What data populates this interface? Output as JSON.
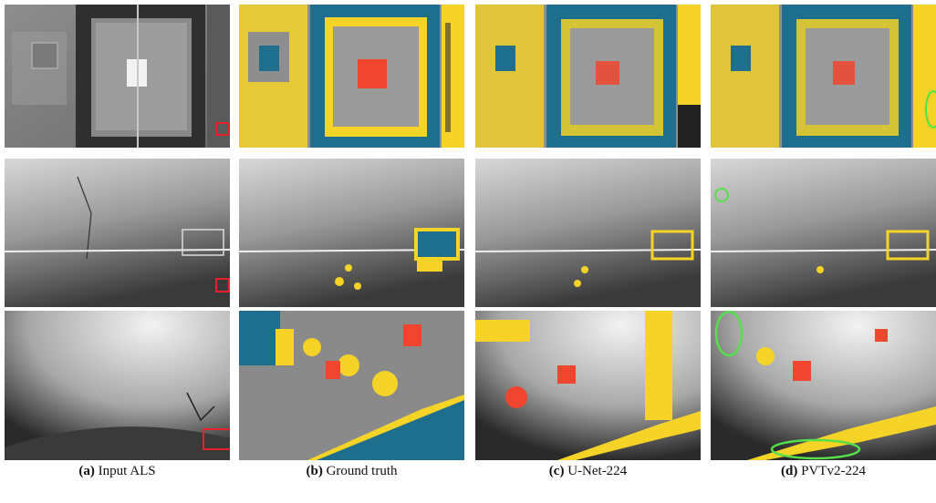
{
  "captions": [
    {
      "letter": "(a)",
      "label": "Input ALS"
    },
    {
      "letter": "(b)",
      "label": "Ground truth"
    },
    {
      "letter": "(c)",
      "label": "U-Net-224"
    },
    {
      "letter": "(d)",
      "label": "PVTv2-224"
    }
  ],
  "colors": {
    "building": "#f0452f",
    "platform": "#f5d327",
    "water": "#1e6e8e",
    "box": "#e8222a",
    "ellipse": "#55e04a"
  }
}
